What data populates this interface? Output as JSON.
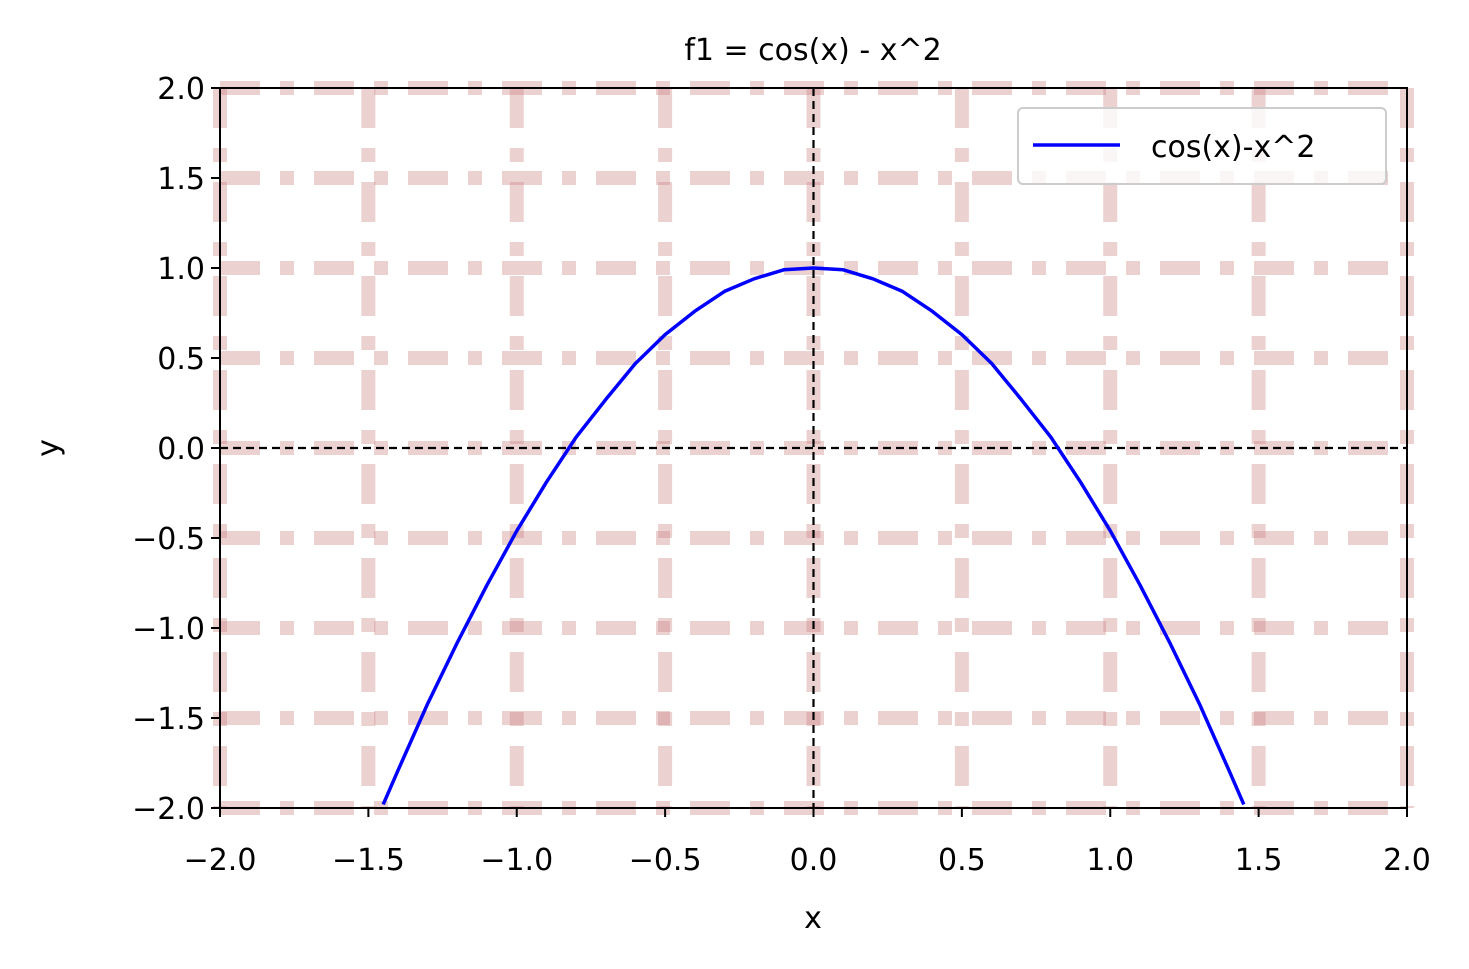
{
  "chart_data": {
    "type": "line",
    "title": "f1 = cos(x) - x^2",
    "xlabel": "x",
    "ylabel": "y",
    "xlim": [
      -2.0,
      2.0
    ],
    "ylim": [
      -2.0,
      2.0
    ],
    "x_ticks": [
      -2.0,
      -1.5,
      -1.0,
      -0.5,
      0.0,
      0.5,
      1.0,
      1.5,
      2.0
    ],
    "x_tick_labels": [
      "−2.0",
      "−1.5",
      "−1.0",
      "−0.5",
      "0.0",
      "0.5",
      "1.0",
      "1.5",
      "2.0"
    ],
    "y_ticks": [
      2.0,
      1.5,
      1.0,
      0.5,
      0.0,
      -0.5,
      -1.0,
      -1.5,
      -2.0
    ],
    "y_tick_labels": [
      "2.0",
      "1.5",
      "1.0",
      "0.5",
      "0.0",
      "−0.5",
      "−1.0",
      "−1.5",
      "−2.0"
    ],
    "grid": true,
    "grid_color": "#c97b7b",
    "reference_lines": {
      "x": 0,
      "y": 0,
      "style": "dashed",
      "color": "#000000"
    },
    "legend_position": "top-right",
    "series": [
      {
        "name": "cos(x)-x^2",
        "color": "#0000ff",
        "x": [
          -1.45,
          -1.4,
          -1.3,
          -1.2,
          -1.1,
          -1.0,
          -0.9,
          -0.824,
          -0.8,
          -0.7,
          -0.6,
          -0.5,
          -0.4,
          -0.3,
          -0.2,
          -0.1,
          0.0,
          0.1,
          0.2,
          0.3,
          0.4,
          0.5,
          0.6,
          0.7,
          0.8,
          0.824,
          0.9,
          1.0,
          1.1,
          1.2,
          1.3,
          1.4,
          1.45
        ],
        "y": [
          -1.98,
          -1.79,
          -1.42,
          -1.08,
          -0.76,
          -0.46,
          -0.19,
          0.0,
          0.06,
          0.27,
          0.47,
          0.63,
          0.76,
          0.87,
          0.94,
          0.99,
          1.0,
          0.99,
          0.94,
          0.87,
          0.76,
          0.63,
          0.47,
          0.27,
          0.06,
          0.0,
          -0.19,
          -0.46,
          -0.76,
          -1.08,
          -1.42,
          -1.79,
          -1.98
        ]
      }
    ]
  }
}
